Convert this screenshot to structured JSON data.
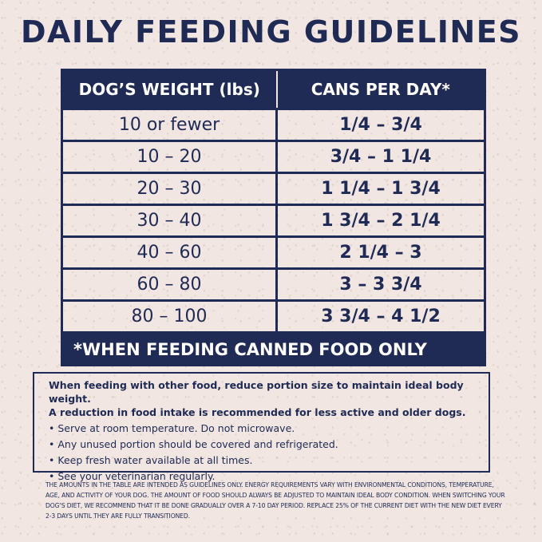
{
  "title": "DAILY FEEDING GUIDELINES",
  "table": {
    "headers": [
      "DOG’S WEIGHT (lbs)",
      "CANS PER DAY*"
    ],
    "rows": [
      [
        "10 or fewer",
        "1/4 – 3/4"
      ],
      [
        "10 – 20",
        "3/4 – 1 1/4"
      ],
      [
        "20 – 30",
        "1 1/4 – 1 3/4"
      ],
      [
        "30 – 40",
        "1 3/4 – 2 1/4"
      ],
      [
        "40 – 60",
        "2 1/4 – 3"
      ],
      [
        "60 – 80",
        "3 – 3 3/4"
      ],
      [
        "80 – 100",
        "3 3/4 – 4 1/2"
      ]
    ],
    "footnote": "*WHEN FEEDING CANNED FOOD ONLY"
  },
  "info": {
    "intro_line1": "When feeding with other food, reduce portion size to maintain ideal body weight.",
    "intro_line2": "A reduction in food intake is recommended for less active and older dogs.",
    "bullets": [
      "Serve at room temperature. Do not microwave.",
      "Any unused portion should be covered and refrigerated.",
      "Keep fresh water available at all times.",
      "See your veterinarian regularly."
    ]
  },
  "fine_print": "THE AMOUNTS IN THE TABLE ARE INTENDED AS GUIDELINES ONLY. ENERGY REQUIREMENTS VARY WITH ENVIRONMENTAL CONDITIONS, TEMPERATURE, AGE, AND ACTIVITY OF YOUR DOG. THE AMOUNT OF FOOD SHOULD ALWAYS BE ADJUSTED TO MAINTAIN IDEAL BODY CONDITION. WHEN SWITCHING YOUR DOG’S DIET, WE RECOMMEND THAT IT BE DONE GRADUALLY OVER A 7-10 DAY PERIOD. REPLACE 25% OF THE CURRENT DIET WITH THE NEW DIET EVERY 2-3 DAYS UNTIL THEY ARE FULLY TRANSITIONED.",
  "colors": {
    "navy": "#1f2a55",
    "background": "#f1e6e1",
    "header_text": "#ffffff"
  }
}
